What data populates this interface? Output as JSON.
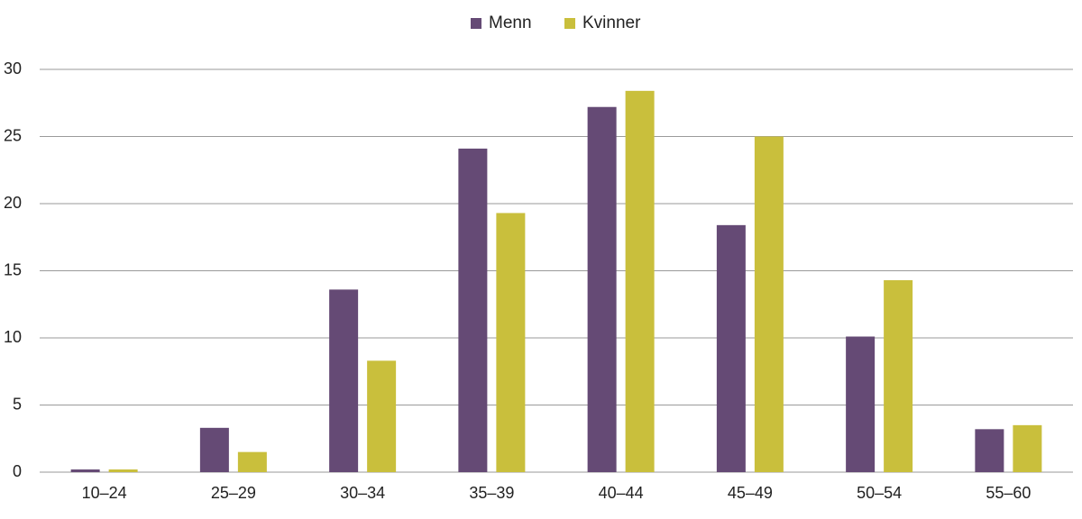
{
  "chart_data": {
    "type": "bar",
    "categories": [
      "10–24",
      "25–29",
      "30–34",
      "35–39",
      "40–44",
      "45–49",
      "50–54",
      "55–60"
    ],
    "series": [
      {
        "name": "Menn",
        "color": "#654a75",
        "values": [
          0.2,
          3.3,
          13.6,
          24.1,
          27.2,
          18.4,
          10.1,
          3.2
        ]
      },
      {
        "name": "Kvinner",
        "color": "#c9bf3c",
        "values": [
          0.2,
          1.5,
          8.3,
          19.3,
          28.4,
          25.0,
          14.3,
          3.5
        ]
      }
    ],
    "ylim": [
      0,
      30
    ],
    "yticks": [
      0,
      5,
      10,
      15,
      20,
      25,
      30
    ],
    "grid": true,
    "legend": "top"
  }
}
